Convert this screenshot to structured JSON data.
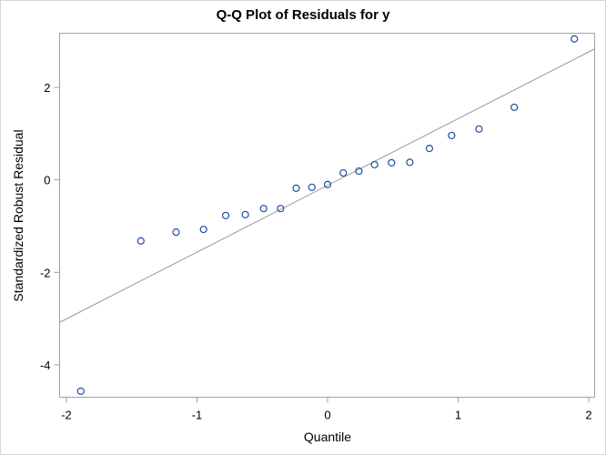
{
  "chart_data": {
    "type": "scatter",
    "title": "Q-Q Plot of Residuals for y",
    "xlabel": "Quantile",
    "ylabel": "Standardized Robust Residual",
    "xlim": [
      -2.05,
      2.05
    ],
    "ylim": [
      -4.7,
      3.2
    ],
    "x_ticks": [
      -2,
      -1,
      0,
      1,
      2
    ],
    "y_ticks": [
      -4,
      -2,
      0,
      2
    ],
    "grid": false,
    "legend": null,
    "series": [
      {
        "name": "Residuals",
        "marker": "open-circle",
        "color": "#1f4ea0",
        "x": [
          -1.89,
          -1.43,
          -1.16,
          -0.95,
          -0.78,
          -0.63,
          -0.49,
          -0.36,
          -0.24,
          -0.12,
          0.0,
          0.12,
          0.24,
          0.36,
          0.49,
          0.63,
          0.78,
          0.95,
          1.16,
          1.43,
          1.89
        ],
        "y": [
          -4.57,
          -1.32,
          -1.13,
          -1.07,
          -0.77,
          -0.75,
          -0.62,
          -0.62,
          -0.18,
          -0.16,
          -0.1,
          0.15,
          0.19,
          0.33,
          0.37,
          0.38,
          0.68,
          0.96,
          1.1,
          1.57,
          3.05
        ]
      }
    ],
    "reference_line": {
      "color": "#999999",
      "x": [
        -2.05,
        2.05
      ],
      "y": [
        -3.07,
        2.83
      ]
    }
  }
}
